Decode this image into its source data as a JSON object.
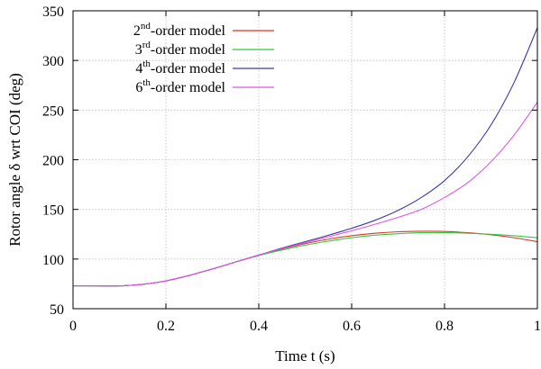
{
  "chart_data": {
    "type": "line",
    "xlabel": "Time t (s)",
    "ylabel": "Rotor angle δ wrt COI (deg)",
    "xlim": [
      0,
      1
    ],
    "ylim": [
      50,
      350
    ],
    "xticks": [
      0,
      0.2,
      0.4,
      0.6,
      0.8,
      1
    ],
    "xtick_labels": [
      "0",
      "0.2",
      "0.4",
      "0.6",
      "0.8",
      "1"
    ],
    "yticks": [
      50,
      100,
      150,
      200,
      250,
      300,
      350
    ],
    "ytick_labels": [
      "50",
      "100",
      "150",
      "200",
      "250",
      "300",
      "350"
    ],
    "grid": true,
    "legend_position": "top-left",
    "series": [
      {
        "name": "2nd-order model",
        "legend_base": "2",
        "legend_sup": "nd",
        "legend_rest": "-order model",
        "color": "#e0312f",
        "x": [
          0,
          0.05,
          0.1,
          0.12,
          0.15,
          0.2,
          0.25,
          0.3,
          0.35,
          0.4,
          0.45,
          0.5,
          0.55,
          0.6,
          0.65,
          0.7,
          0.75,
          0.8,
          0.85,
          0.9,
          0.95,
          1.0
        ],
        "values": [
          73,
          73,
          73,
          73.5,
          74.5,
          78,
          83.5,
          90,
          97,
          104,
          110,
          115.5,
          120,
          123.5,
          126,
          127.5,
          128,
          127.8,
          126.5,
          124.5,
          121.5,
          117.5
        ]
      },
      {
        "name": "3rd-order model",
        "legend_base": "3",
        "legend_sup": "rd",
        "legend_rest": "-order model",
        "color": "#2ecc40",
        "x": [
          0,
          0.05,
          0.1,
          0.12,
          0.15,
          0.2,
          0.25,
          0.3,
          0.35,
          0.4,
          0.45,
          0.5,
          0.55,
          0.6,
          0.65,
          0.7,
          0.75,
          0.8,
          0.85,
          0.9,
          0.95,
          1.0
        ],
        "values": [
          73,
          73,
          73,
          73.5,
          74.5,
          78,
          83.5,
          90,
          97,
          103.5,
          109,
          114,
          118,
          121.5,
          124,
          125.5,
          126.5,
          126.5,
          126,
          125,
          123.5,
          121.5
        ]
      },
      {
        "name": "4th-order model",
        "legend_base": "4",
        "legend_sup": "th",
        "legend_rest": "-order model",
        "color": "#3a3aa8",
        "x": [
          0,
          0.05,
          0.1,
          0.12,
          0.15,
          0.2,
          0.25,
          0.3,
          0.35,
          0.4,
          0.45,
          0.5,
          0.55,
          0.6,
          0.65,
          0.7,
          0.75,
          0.8,
          0.85,
          0.9,
          0.95,
          1.0
        ],
        "values": [
          73,
          73,
          73,
          73.5,
          74.5,
          78,
          83.5,
          90,
          97,
          104,
          111,
          117.5,
          124,
          131,
          139,
          149,
          162,
          179,
          203,
          235,
          278,
          333
        ]
      },
      {
        "name": "6th-order model",
        "legend_base": "6",
        "legend_sup": "th",
        "legend_rest": "-order model",
        "color": "#e055e0",
        "x": [
          0,
          0.05,
          0.1,
          0.12,
          0.15,
          0.2,
          0.25,
          0.3,
          0.35,
          0.4,
          0.45,
          0.5,
          0.55,
          0.6,
          0.65,
          0.7,
          0.75,
          0.8,
          0.85,
          0.9,
          0.95,
          1.0
        ],
        "values": [
          73,
          73,
          73,
          73.5,
          74.5,
          78,
          83.5,
          90,
          97,
          104,
          110.5,
          116.5,
          122.5,
          128.5,
          135,
          142,
          150,
          162,
          177,
          198,
          225,
          258
        ]
      }
    ]
  }
}
